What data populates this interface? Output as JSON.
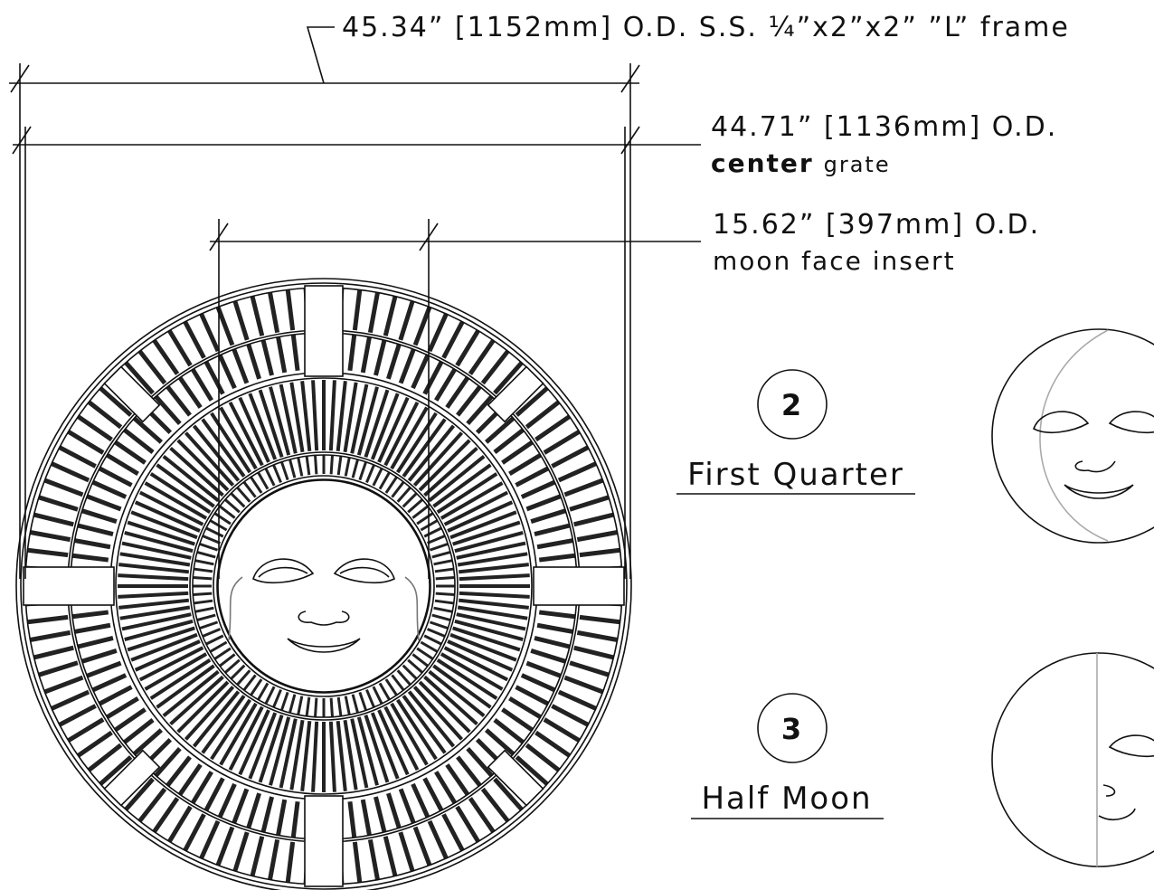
{
  "dimensions": [
    {
      "label": "45.34” [1152mm] O.D. S.S. ¼”x2”x2” ”L” frame"
    },
    {
      "label": "44.71” [1136mm] O.D.",
      "note_bold": "center",
      "note": "grate"
    },
    {
      "label": "15.62” [397mm] O.D.",
      "note": "moon face insert"
    }
  ],
  "phases": [
    {
      "number": "2",
      "name": "First Quarter"
    },
    {
      "number": "3",
      "name": "Half Moon"
    }
  ]
}
